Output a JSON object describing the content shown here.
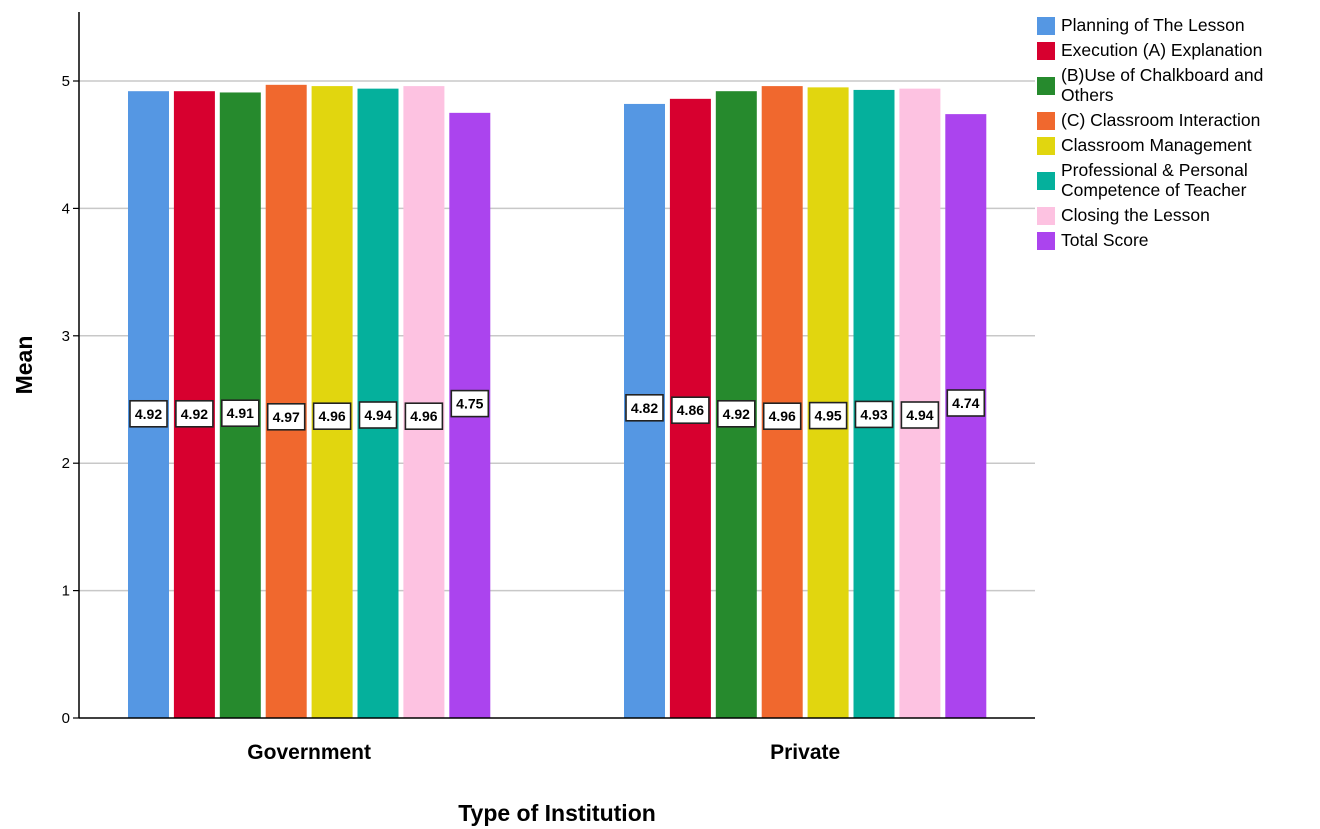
{
  "chart_data": {
    "type": "bar",
    "categories": [
      "Government",
      "Private"
    ],
    "series": [
      {
        "name": "Planning of The Lesson",
        "color": "#5597e3",
        "values": [
          4.92,
          4.82
        ]
      },
      {
        "name": "Execution (A) Explanation",
        "color": "#d7002f",
        "values": [
          4.92,
          4.86
        ]
      },
      {
        "name": "(B)Use of Chalkboard and Others",
        "color": "#268a2d",
        "values": [
          4.91,
          4.92
        ]
      },
      {
        "name": "(C) Classroom Interaction",
        "color": "#f0682e",
        "values": [
          4.97,
          4.96
        ]
      },
      {
        "name": "Classroom Management",
        "color": "#e1d60f",
        "values": [
          4.96,
          4.95
        ]
      },
      {
        "name": "Professional & Personal Competence of Teacher",
        "color": "#05b09c",
        "values": [
          4.94,
          4.93
        ]
      },
      {
        "name": "Closing  the Lesson",
        "color": "#fdc2e1",
        "values": [
          4.96,
          4.94
        ]
      },
      {
        "name": "Total Score",
        "color": "#ab44ee",
        "values": [
          4.75,
          4.74
        ]
      }
    ],
    "data_labels": [
      [
        "4.92",
        "4.82"
      ],
      [
        "4.92",
        "4.86"
      ],
      [
        "4.91",
        "4.92"
      ],
      [
        "4.97",
        "4.96"
      ],
      [
        "4.96",
        "4.95"
      ],
      [
        "4.94",
        "4.93"
      ],
      [
        "4.96",
        "4.94"
      ],
      [
        "4.75",
        "4.74"
      ]
    ],
    "legend_lines": [
      [
        "Planning of The Lesson"
      ],
      [
        "Execution (A) Explanation"
      ],
      [
        "(B)Use of Chalkboard and",
        "Others"
      ],
      [
        "(C) Classroom Interaction"
      ],
      [
        "Classroom Management"
      ],
      [
        "Professional & Personal",
        "Competence of Teacher"
      ],
      [
        "Closing  the Lesson"
      ],
      [
        "Total Score"
      ]
    ],
    "xlabel": "Type of Institution",
    "ylabel": "Mean",
    "ylim": [
      0,
      5.5
    ],
    "yticks": [
      "0",
      "1",
      "2",
      "3",
      "4",
      "5"
    ],
    "grid": "horizontal",
    "legend_position": "top-right"
  }
}
